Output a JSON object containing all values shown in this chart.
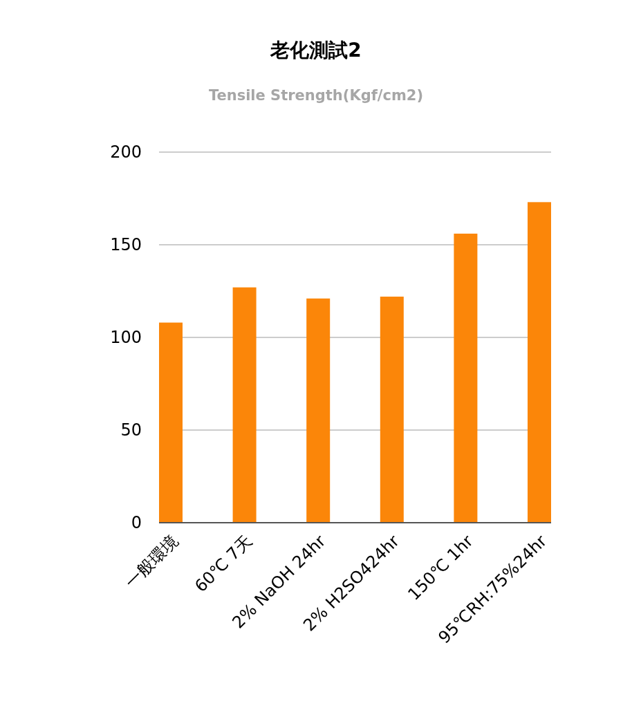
{
  "chart_data": {
    "type": "bar",
    "title": "老化測試2",
    "subtitle": "Tensile Strength(Kgf/cm2)",
    "categories": [
      "一般環境",
      "60℃ 7天",
      "2% NaOH 24hr",
      "2% H2SO424hr",
      "150℃ 1hr",
      "95℃RH:75%24hr"
    ],
    "values": [
      108,
      127,
      121,
      122,
      156,
      173
    ],
    "color": "#fb8609",
    "ylim": [
      0,
      200
    ],
    "yticks": [
      0,
      50,
      100,
      150,
      200
    ],
    "grid": "y"
  }
}
